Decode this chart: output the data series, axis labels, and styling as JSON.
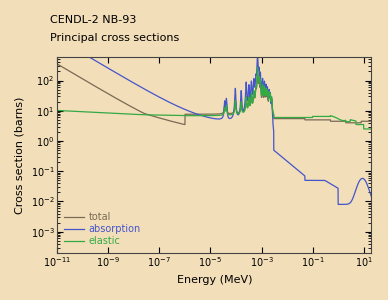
{
  "title_line1": "CENDL-2 NB-93",
  "title_line2": "Principal cross sections",
  "xlabel": "Energy (MeV)",
  "ylabel": "Cross section (barns)",
  "background_color": "#f2deb8",
  "axes_bg_color": "#f2deb8",
  "total_color": "#7a6a55",
  "absorption_color": "#4455cc",
  "elastic_color": "#33aa44",
  "xmin": 1e-11,
  "xmax": 20.0,
  "ymin": 0.0002,
  "ymax": 600.0,
  "legend_labels": [
    "total",
    "absorption",
    "elastic"
  ],
  "legend_colors": [
    "#7a6a55",
    "#4455cc",
    "#33aa44"
  ]
}
